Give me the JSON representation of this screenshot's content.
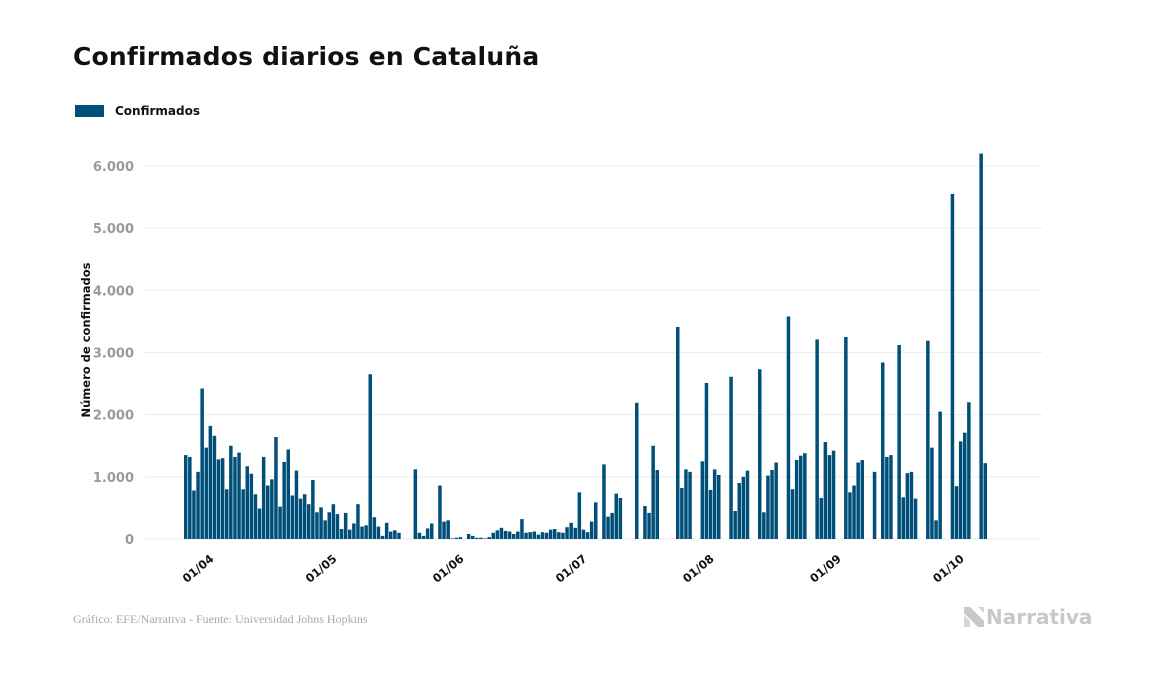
{
  "title": "Confirmados diarios en Cataluña",
  "legend": [
    {
      "label": "Confirmados",
      "color": "#004f79"
    }
  ],
  "source": "Gráfico: EFE/Narrativa - Fuente: Universidad Johns Hopkins",
  "brand": {
    "name": "Narrativa",
    "icon": "narrativa-logo-icon"
  },
  "chart_data": {
    "type": "bar",
    "title": "Confirmados diarios en Cataluña",
    "xlabel": "",
    "ylabel": "Número de confirmados",
    "ylim": [
      0,
      6500
    ],
    "yticks": [
      0,
      1000,
      2000,
      3000,
      4000,
      5000,
      6000
    ],
    "ytick_labels": [
      "0",
      "1.000",
      "2.000",
      "3.000",
      "4.000",
      "5.000",
      "6.000"
    ],
    "grid": true,
    "legend_position": "top-left",
    "color": "#004f79",
    "start_date": "27/03",
    "xtick_labels": [
      {
        "label": "01/04",
        "day_index": 5
      },
      {
        "label": "01/05",
        "day_index": 35
      },
      {
        "label": "01/06",
        "day_index": 66
      },
      {
        "label": "01/07",
        "day_index": 96
      },
      {
        "label": "01/08",
        "day_index": 127
      },
      {
        "label": "01/09",
        "day_index": 158
      },
      {
        "label": "01/10",
        "day_index": 188
      }
    ],
    "series": [
      {
        "name": "Confirmados",
        "values": [
          1350,
          1320,
          780,
          1080,
          2420,
          1470,
          1820,
          1660,
          1280,
          1300,
          800,
          1500,
          1320,
          1390,
          800,
          1170,
          1050,
          720,
          490,
          1320,
          860,
          960,
          1640,
          520,
          1240,
          1440,
          700,
          1100,
          650,
          720,
          560,
          950,
          430,
          510,
          300,
          430,
          560,
          400,
          160,
          420,
          150,
          250,
          560,
          200,
          220,
          2650,
          350,
          200,
          50,
          260,
          120,
          140,
          100,
          0,
          0,
          0,
          1120,
          100,
          50,
          170,
          250,
          0,
          860,
          280,
          300,
          10,
          20,
          30,
          0,
          80,
          50,
          20,
          20,
          10,
          30,
          100,
          140,
          180,
          130,
          120,
          80,
          120,
          320,
          100,
          110,
          120,
          70,
          110,
          100,
          150,
          160,
          110,
          100,
          190,
          260,
          180,
          750,
          150,
          110,
          280,
          590,
          0,
          1200,
          360,
          420,
          730,
          660,
          0,
          0,
          0,
          2190,
          0,
          530,
          420,
          1500,
          1110,
          0,
          0,
          0,
          0,
          3410,
          820,
          1120,
          1080,
          0,
          0,
          1250,
          2510,
          790,
          1120,
          1030,
          0,
          0,
          2610,
          450,
          900,
          1000,
          1100,
          0,
          0,
          2730,
          430,
          1020,
          1110,
          1230,
          0,
          0,
          3580,
          800,
          1270,
          1340,
          1380,
          0,
          0,
          3210,
          660,
          1560,
          1350,
          1420,
          0,
          0,
          3250,
          750,
          860,
          1230,
          1270,
          0,
          0,
          1080,
          0,
          2840,
          1320,
          1350,
          0,
          3120,
          670,
          1060,
          1080,
          650,
          0,
          0,
          3190,
          1470,
          300,
          2050,
          0,
          0,
          5550,
          850,
          1570,
          1710,
          2200,
          0,
          0,
          6200,
          1220
        ]
      }
    ]
  }
}
